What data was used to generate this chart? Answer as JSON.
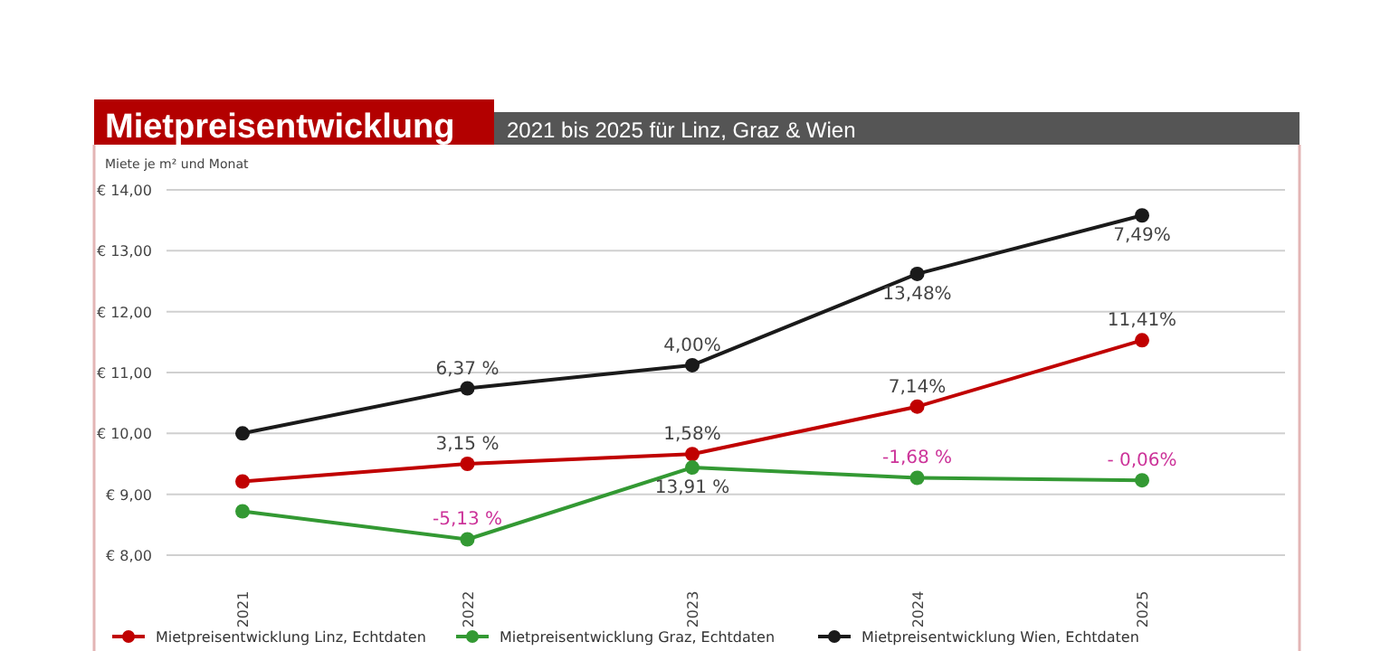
{
  "chart_data": {
    "type": "line",
    "title": "Mietpreisentwicklung",
    "subtitle": "2021 bis 2025 für Linz, Graz & Wien",
    "ylabel": "Miete je m² und Monat",
    "categories": [
      "2021",
      "2022",
      "2023",
      "2024",
      "2025"
    ],
    "series": [
      {
        "name": "Mietpreisentwicklung Linz, Echtdaten",
        "color": "#c00000",
        "values": [
          9.21,
          9.5,
          9.66,
          10.44,
          11.53
        ]
      },
      {
        "name": "Mietpreisentwicklung Graz, Echtdaten",
        "color": "#339933",
        "values": [
          8.72,
          8.26,
          9.44,
          9.27,
          9.23
        ]
      },
      {
        "name": "Mietpreisentwicklung Wien, Echtdaten",
        "color": "#1a1a1a",
        "values": [
          10.0,
          10.74,
          11.12,
          12.62,
          13.58
        ]
      }
    ],
    "annotations": [
      {
        "text": "3,15 %",
        "x": "2022",
        "y": 9.5
      },
      {
        "text": "1,58%",
        "x": "2023",
        "y": 9.66
      },
      {
        "text": "7,14%",
        "x": "2024",
        "y": 10.44
      },
      {
        "text": "11,41%",
        "x": "2025",
        "y": 11.53
      },
      {
        "text": "-5,13 %",
        "x": "2022",
        "y": 8.26
      },
      {
        "text": "13,91 %",
        "x": "2023",
        "y": 9.44
      },
      {
        "text": "-1,68 %",
        "x": "2024",
        "y": 9.27
      },
      {
        "text": "- 0,06%",
        "x": "2025",
        "y": 9.23
      },
      {
        "text": "6,37 %",
        "x": "2022",
        "y": 10.74
      },
      {
        "text": "4,00%",
        "x": "2023",
        "y": 11.12
      },
      {
        "text": "13,48%",
        "x": "2024",
        "y": 12.62
      },
      {
        "text": "7,49%",
        "x": "2025",
        "y": 13.58
      }
    ],
    "ylim": [
      8,
      14
    ],
    "yticks": [
      {
        "value": 8,
        "label": "€ 8,00"
      },
      {
        "value": 9,
        "label": "€ 9,00"
      },
      {
        "value": 10,
        "label": "€ 10,00"
      },
      {
        "value": 11,
        "label": "€ 11,00"
      },
      {
        "value": 12,
        "label": "€ 12,00"
      },
      {
        "value": 13,
        "label": "€ 13,00"
      },
      {
        "value": 14,
        "label": "€ 14,00"
      }
    ],
    "grid": "y",
    "legend": "bottom",
    "marker": "circle",
    "line_style": "solid"
  }
}
